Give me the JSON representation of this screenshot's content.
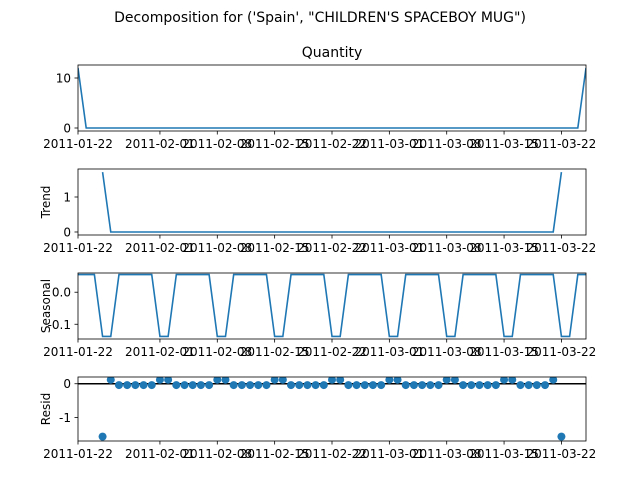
{
  "figure": {
    "suptitle": "Decomposition for ('Spain', \"CHILDREN'S SPACEBOY MUG\")"
  },
  "colors": {
    "series": "#1f77b4",
    "zero_line": "#000000"
  },
  "chart_data": [
    {
      "type": "line",
      "panel": "observed",
      "title": "Quantity",
      "ylabel": "",
      "x_tick_labels": [
        "2011-01-22",
        "2011-02-01",
        "2011-02-08",
        "2011-02-15",
        "2011-02-22",
        "2011-03-01",
        "2011-03-08",
        "2011-03-15",
        "2011-03-22"
      ],
      "x_range_days": [
        0,
        62
      ],
      "x_ticks_days": [
        0,
        10,
        17,
        24,
        31,
        38,
        45,
        52,
        59
      ],
      "y_tick_labels": [
        "0",
        "10"
      ],
      "ylim": [
        -0.6,
        12.6
      ],
      "points": [
        [
          0,
          12
        ],
        [
          1,
          0
        ],
        [
          61,
          0
        ],
        [
          62,
          12
        ]
      ]
    },
    {
      "type": "line",
      "panel": "trend",
      "title": "",
      "ylabel": "Trend",
      "x_tick_labels": [
        "2011-01-22",
        "2011-02-01",
        "2011-02-08",
        "2011-02-15",
        "2011-02-22",
        "2011-03-01",
        "2011-03-08",
        "2011-03-15",
        "2011-03-22"
      ],
      "x_range_days": [
        0,
        62
      ],
      "x_ticks_days": [
        0,
        10,
        17,
        24,
        31,
        38,
        45,
        52,
        59
      ],
      "y_tick_labels": [
        "0",
        "1"
      ],
      "ylim": [
        -0.086,
        1.8
      ],
      "points": [
        [
          3,
          1.71
        ],
        [
          4,
          0
        ],
        [
          58,
          0
        ],
        [
          59,
          1.71
        ]
      ]
    },
    {
      "type": "line",
      "panel": "seasonal",
      "title": "",
      "ylabel": "Seasonal",
      "x_tick_labels": [
        "2011-01-22",
        "2011-02-01",
        "2011-02-08",
        "2011-02-15",
        "2011-02-22",
        "2011-03-01",
        "2011-03-08",
        "2011-03-15",
        "2011-03-22"
      ],
      "x_range_days": [
        0,
        62
      ],
      "x_ticks_days": [
        0,
        10,
        17,
        24,
        31,
        38,
        45,
        52,
        59
      ],
      "y_tick_labels": [
        "0.0",
        "-0.1"
      ],
      "y_tick_values": [
        0,
        -0.1
      ],
      "ylim": [
        -0.146,
        0.06
      ],
      "weekly_pattern": [
        0.055,
        0.055,
        -0.138,
        -0.138,
        0.055,
        0.055,
        0.055
      ],
      "pattern_start_day": 1
    },
    {
      "type": "scatter",
      "panel": "resid",
      "title": "",
      "ylabel": "Resid",
      "x_tick_labels": [
        "2011-01-22",
        "2011-02-01",
        "2011-02-08",
        "2011-02-15",
        "2011-02-22",
        "2011-03-01",
        "2011-03-08",
        "2011-03-15",
        "2011-03-22"
      ],
      "x_range_days": [
        0,
        62
      ],
      "x_ticks_days": [
        0,
        10,
        17,
        24,
        31,
        38,
        45,
        52,
        59
      ],
      "y_tick_labels": [
        "0",
        "-1"
      ],
      "y_tick_values": [
        0,
        -1
      ],
      "ylim": [
        -1.7,
        0.2
      ],
      "points": [
        [
          3,
          -1.57
        ],
        [
          4,
          0.12
        ],
        [
          5,
          -0.04
        ],
        [
          6,
          -0.04
        ],
        [
          7,
          -0.04
        ],
        [
          8,
          -0.04
        ],
        [
          9,
          -0.04
        ],
        [
          10,
          0.12
        ],
        [
          11,
          0.12
        ],
        [
          12,
          -0.04
        ],
        [
          13,
          -0.04
        ],
        [
          14,
          -0.04
        ],
        [
          15,
          -0.04
        ],
        [
          16,
          -0.04
        ],
        [
          17,
          0.12
        ],
        [
          18,
          0.12
        ],
        [
          19,
          -0.04
        ],
        [
          20,
          -0.04
        ],
        [
          21,
          -0.04
        ],
        [
          22,
          -0.04
        ],
        [
          23,
          -0.04
        ],
        [
          24,
          0.12
        ],
        [
          25,
          0.12
        ],
        [
          26,
          -0.04
        ],
        [
          27,
          -0.04
        ],
        [
          28,
          -0.04
        ],
        [
          29,
          -0.04
        ],
        [
          30,
          -0.04
        ],
        [
          31,
          0.12
        ],
        [
          32,
          0.12
        ],
        [
          33,
          -0.04
        ],
        [
          34,
          -0.04
        ],
        [
          35,
          -0.04
        ],
        [
          36,
          -0.04
        ],
        [
          37,
          -0.04
        ],
        [
          38,
          0.12
        ],
        [
          39,
          0.12
        ],
        [
          40,
          -0.04
        ],
        [
          41,
          -0.04
        ],
        [
          42,
          -0.04
        ],
        [
          43,
          -0.04
        ],
        [
          44,
          -0.04
        ],
        [
          45,
          0.12
        ],
        [
          46,
          0.12
        ],
        [
          47,
          -0.04
        ],
        [
          48,
          -0.04
        ],
        [
          49,
          -0.04
        ],
        [
          50,
          -0.04
        ],
        [
          51,
          -0.04
        ],
        [
          52,
          0.12
        ],
        [
          53,
          0.12
        ],
        [
          54,
          -0.04
        ],
        [
          55,
          -0.04
        ],
        [
          56,
          -0.04
        ],
        [
          57,
          -0.04
        ],
        [
          58,
          0.12
        ],
        [
          59,
          -1.57
        ]
      ]
    }
  ]
}
